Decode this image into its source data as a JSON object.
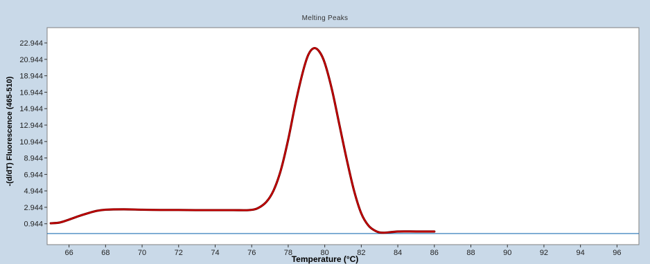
{
  "chart_data": {
    "type": "line",
    "title": "Melting Peaks",
    "xlabel": "Temperature (°C)",
    "ylabel": "-(d/dT) Fluorescence (465-510)",
    "xlim": [
      64.8,
      97.2
    ],
    "ylim": [
      -1.6,
      24.8
    ],
    "x_ticks": [
      66,
      68,
      70,
      72,
      74,
      76,
      78,
      80,
      82,
      84,
      86,
      88,
      90,
      92,
      94,
      96
    ],
    "y_ticks": [
      0.944,
      2.944,
      4.944,
      6.944,
      8.944,
      10.944,
      12.944,
      14.944,
      16.944,
      18.944,
      20.944,
      22.944
    ],
    "y_tick_labels": [
      "0.944",
      "2.944",
      "4.944",
      "6.944",
      "8.944",
      "10.944",
      "12.944",
      "14.944",
      "16.944",
      "18.944",
      "20.944",
      "22.944"
    ],
    "grid": false,
    "series": [
      {
        "color": "#cc0000",
        "x": [
          65.0,
          65.5,
          66.0,
          66.5,
          67.0,
          67.5,
          68.0,
          69.0,
          70.0,
          71.0,
          72.0,
          73.0,
          74.0,
          75.0,
          75.8,
          76.3,
          76.8,
          77.2,
          77.6,
          78.0,
          78.4,
          78.8,
          79.1,
          79.4,
          79.7,
          80.0,
          80.4,
          80.8,
          81.2,
          81.6,
          82.0,
          82.4,
          82.8,
          83.2,
          84.0,
          85.0,
          86.0
        ],
        "y": [
          1.0,
          1.1,
          1.45,
          1.85,
          2.2,
          2.5,
          2.65,
          2.7,
          2.65,
          2.62,
          2.62,
          2.6,
          2.6,
          2.6,
          2.6,
          2.8,
          3.6,
          5.0,
          7.5,
          11.2,
          15.6,
          19.4,
          21.5,
          22.3,
          21.9,
          20.5,
          17.2,
          13.0,
          8.8,
          5.0,
          2.2,
          0.7,
          0.05,
          -0.15,
          0.0,
          0.0,
          0.0
        ]
      },
      {
        "color": "#1f6fb4",
        "x": [
          64.8,
          97.2
        ],
        "y": [
          -0.25,
          -0.25
        ]
      }
    ]
  }
}
